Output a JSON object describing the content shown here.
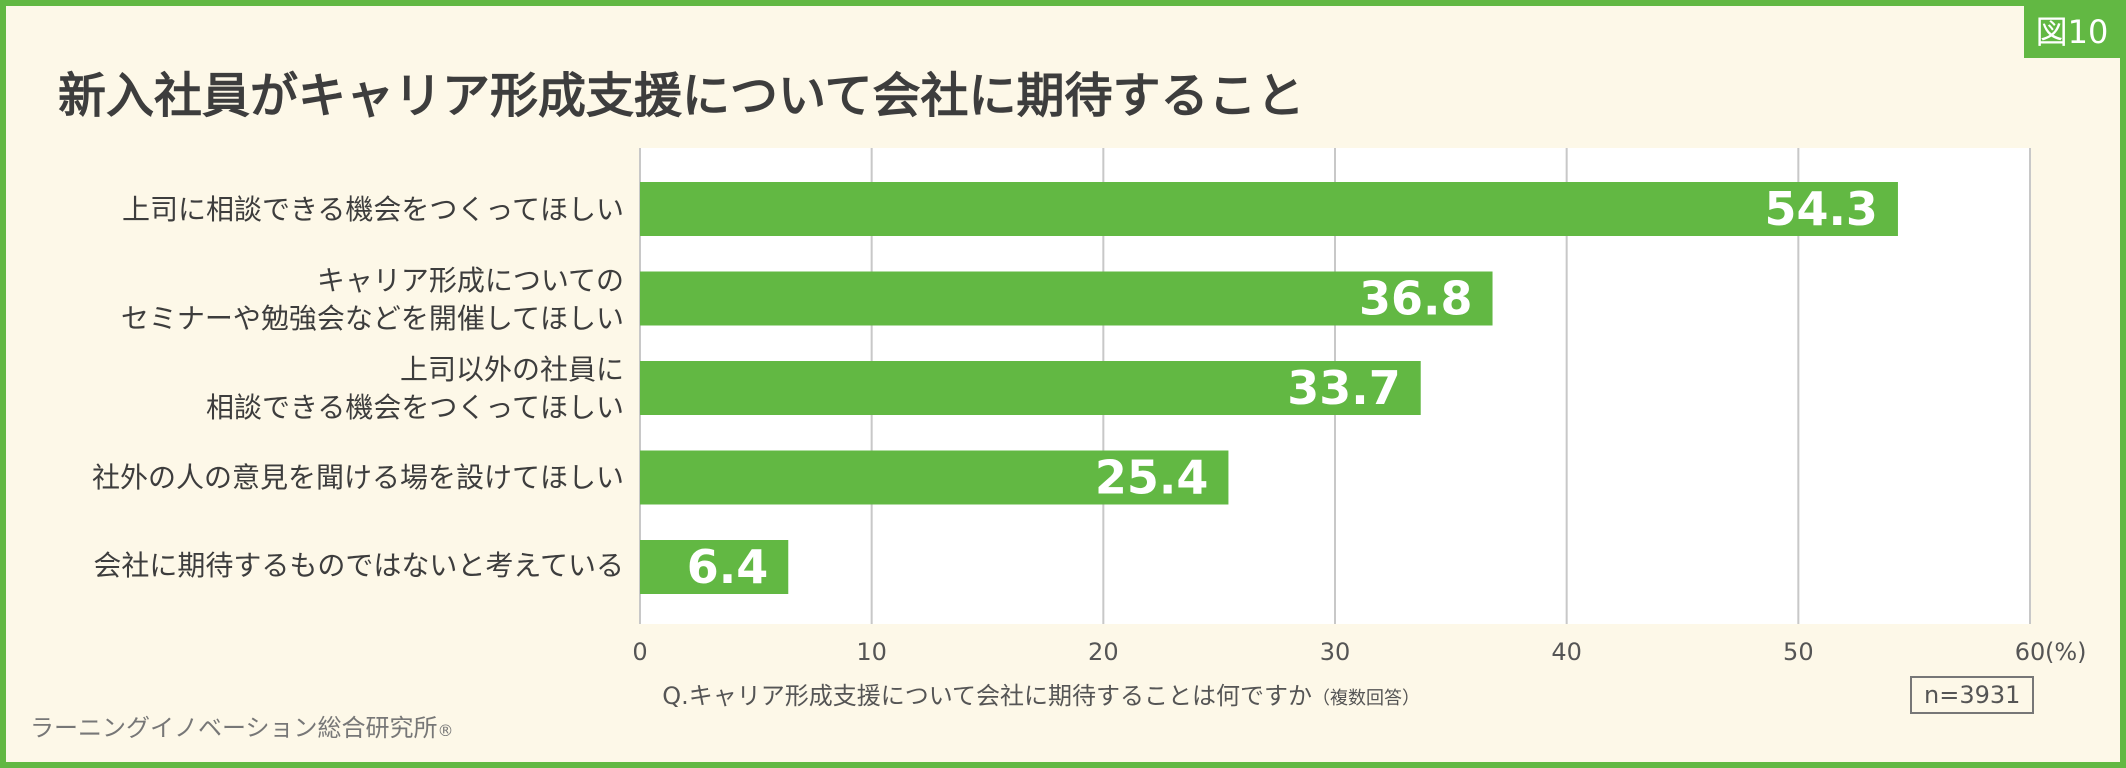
{
  "figure_badge": "図10",
  "chart_data": {
    "type": "bar",
    "orientation": "horizontal",
    "title": "新入社員がキャリア形成支援について会社に期待すること",
    "categories": [
      [
        "上司に相談できる機会をつくってほしい"
      ],
      [
        "キャリア形成についての",
        "セミナーや勉強会などを開催してほしい"
      ],
      [
        "上司以外の社員に",
        "相談できる機会をつくってほしい"
      ],
      [
        "社外の人の意見を聞ける場を設けてほしい"
      ],
      [
        "会社に期待するものではないと考えている"
      ]
    ],
    "values": [
      54.3,
      36.8,
      33.7,
      25.4,
      6.4
    ],
    "value_labels": [
      "54.3",
      "36.8",
      "33.7",
      "25.4",
      "6.4"
    ],
    "xlim": [
      0,
      60
    ],
    "xticks": [
      0,
      10,
      20,
      30,
      40,
      50,
      60
    ],
    "tick_labels": [
      "0",
      "10",
      "20",
      "30",
      "40",
      "50",
      "60"
    ],
    "unit_label": "(%)",
    "grid": true,
    "bar_color": "#62b843",
    "value_label_color": "#ffffff"
  },
  "footer": {
    "question": "Q.キャリア形成支援について会社に期待することは何ですか",
    "question_note": "（複数回答）",
    "sample_size": "n=3931",
    "source": "ラーニングイノベーション総合研究所",
    "registered_mark": "®"
  },
  "colors": {
    "accent": "#62b843",
    "background": "#fdf8e8",
    "text": "#3d3d3d"
  }
}
